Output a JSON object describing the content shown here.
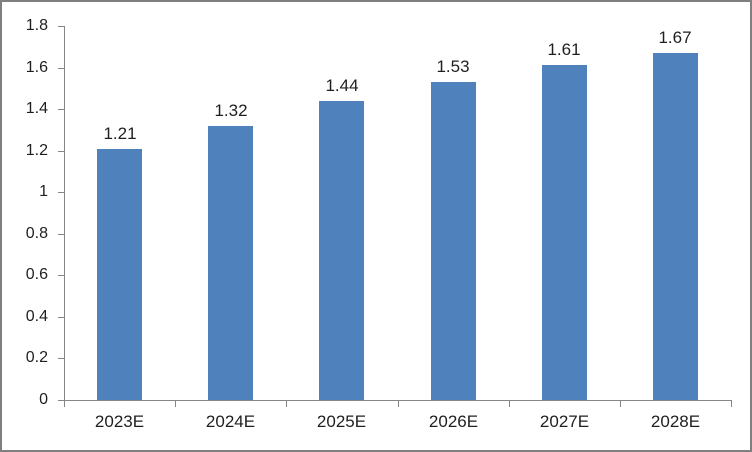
{
  "chart_data": {
    "type": "bar",
    "title": "",
    "xlabel": "",
    "ylabel": "",
    "categories": [
      "2023E",
      "2024E",
      "2025E",
      "2026E",
      "2027E",
      "2028E"
    ],
    "values": [
      1.21,
      1.32,
      1.44,
      1.53,
      1.61,
      1.67
    ],
    "data_labels": [
      "1.21",
      "1.32",
      "1.44",
      "1.53",
      "1.61",
      "1.67"
    ],
    "ylim": [
      0,
      1.8
    ],
    "ytick_step": 0.2,
    "ytick_labels": [
      "0",
      "0.2",
      "0.4",
      "0.6",
      "0.8",
      "1",
      "1.2",
      "1.4",
      "1.6",
      "1.8"
    ],
    "grid": false,
    "legend": "none",
    "colors": {
      "bar_fill": "#4F81BD",
      "axis_line": "#868686",
      "tick_text": "#1f1f1f",
      "frame_border": "#7f7f7f",
      "background": "#ffffff"
    }
  }
}
